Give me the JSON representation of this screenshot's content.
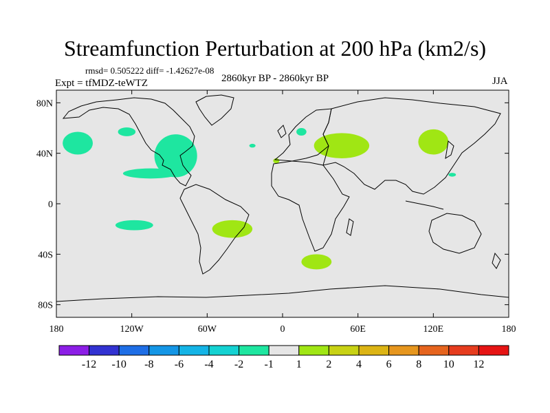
{
  "chart_data": {
    "type": "filled-contour map",
    "title": "Streamfunction Perturbation at 200 hPa (km2/s)",
    "stats_line": "rmsd= 0.505222  diff= -1.42627e-08",
    "period": "2860kyr BP - 2860kyr BP",
    "experiment": "Expt = tfMDZ-teWTZ",
    "season": "JJA",
    "x_ticks": [
      "180",
      "120W",
      "60W",
      "0",
      "60E",
      "120E",
      "180"
    ],
    "x_tick_lons": [
      -180,
      -120,
      -60,
      0,
      60,
      120,
      180
    ],
    "y_ticks": [
      "80N",
      "40N",
      "0",
      "40S",
      "80S"
    ],
    "y_tick_lats": [
      80,
      40,
      0,
      -40,
      -80
    ],
    "xlim": [
      -180,
      180
    ],
    "ylim": [
      -90,
      90
    ],
    "colorbar": {
      "levels": [
        "-12",
        "-10",
        "-8",
        "-6",
        "-4",
        "-2",
        "-1",
        "1",
        "2",
        "4",
        "6",
        "8",
        "10",
        "12"
      ],
      "colors": [
        "#8c1ee6",
        "#3232d2",
        "#1e6ee6",
        "#1496e6",
        "#14b4e6",
        "#14d2d2",
        "#1ee6a0",
        "#e6e6e6",
        "#a0e614",
        "#c8d214",
        "#dcb414",
        "#e6961e",
        "#e6641e",
        "#e63c1e",
        "#e61414"
      ]
    },
    "anomalies": [
      {
        "label": "-1 to -2",
        "lon": -163,
        "lat": 48,
        "rlon": 12,
        "rlat": 9,
        "color": "#1ee6a0"
      },
      {
        "label": "-1 to -2",
        "lon": -124,
        "lat": 57,
        "rlon": 7,
        "rlat": 3.5,
        "color": "#1ee6a0"
      },
      {
        "label": "-1 to -2",
        "lon": -85,
        "lat": 38,
        "rlon": 17,
        "rlat": 17,
        "color": "#1ee6a0"
      },
      {
        "label": "-1 to -2",
        "lon": -105,
        "lat": 24,
        "rlon": 22,
        "rlat": 4,
        "color": "#1ee6a0"
      },
      {
        "label": "-1 to -2",
        "lon": -118,
        "lat": -17,
        "rlon": 15,
        "rlat": 4,
        "color": "#1ee6a0"
      },
      {
        "label": "-1 to -2",
        "lon": -24,
        "lat": 46,
        "rlon": 2.5,
        "rlat": 1.5,
        "color": "#1ee6a0"
      },
      {
        "label": "-1 to -2",
        "lon": 15,
        "lat": 57,
        "rlon": 4,
        "rlat": 3,
        "color": "#1ee6a0"
      },
      {
        "label": "-1 to -2",
        "lon": 135,
        "lat": 23,
        "rlon": 3,
        "rlat": 1.5,
        "color": "#1ee6a0"
      },
      {
        "label": "1 to 2",
        "lon": 47,
        "lat": 46,
        "rlon": 22,
        "rlat": 10,
        "color": "#a0e614"
      },
      {
        "label": "1 to 2",
        "lon": 120,
        "lat": 49,
        "rlon": 12,
        "rlat": 10,
        "color": "#a0e614"
      },
      {
        "label": "1 to 2",
        "lon": -40,
        "lat": -20,
        "rlon": 16,
        "rlat": 7,
        "color": "#a0e614"
      },
      {
        "label": "1 to 2",
        "lon": 27,
        "lat": -46,
        "rlon": 12,
        "rlat": 6,
        "color": "#a0e614"
      },
      {
        "label": "1 to 2",
        "lon": -5,
        "lat": 34,
        "rlon": 2.5,
        "rlat": 2,
        "color": "#a0e614"
      }
    ]
  }
}
